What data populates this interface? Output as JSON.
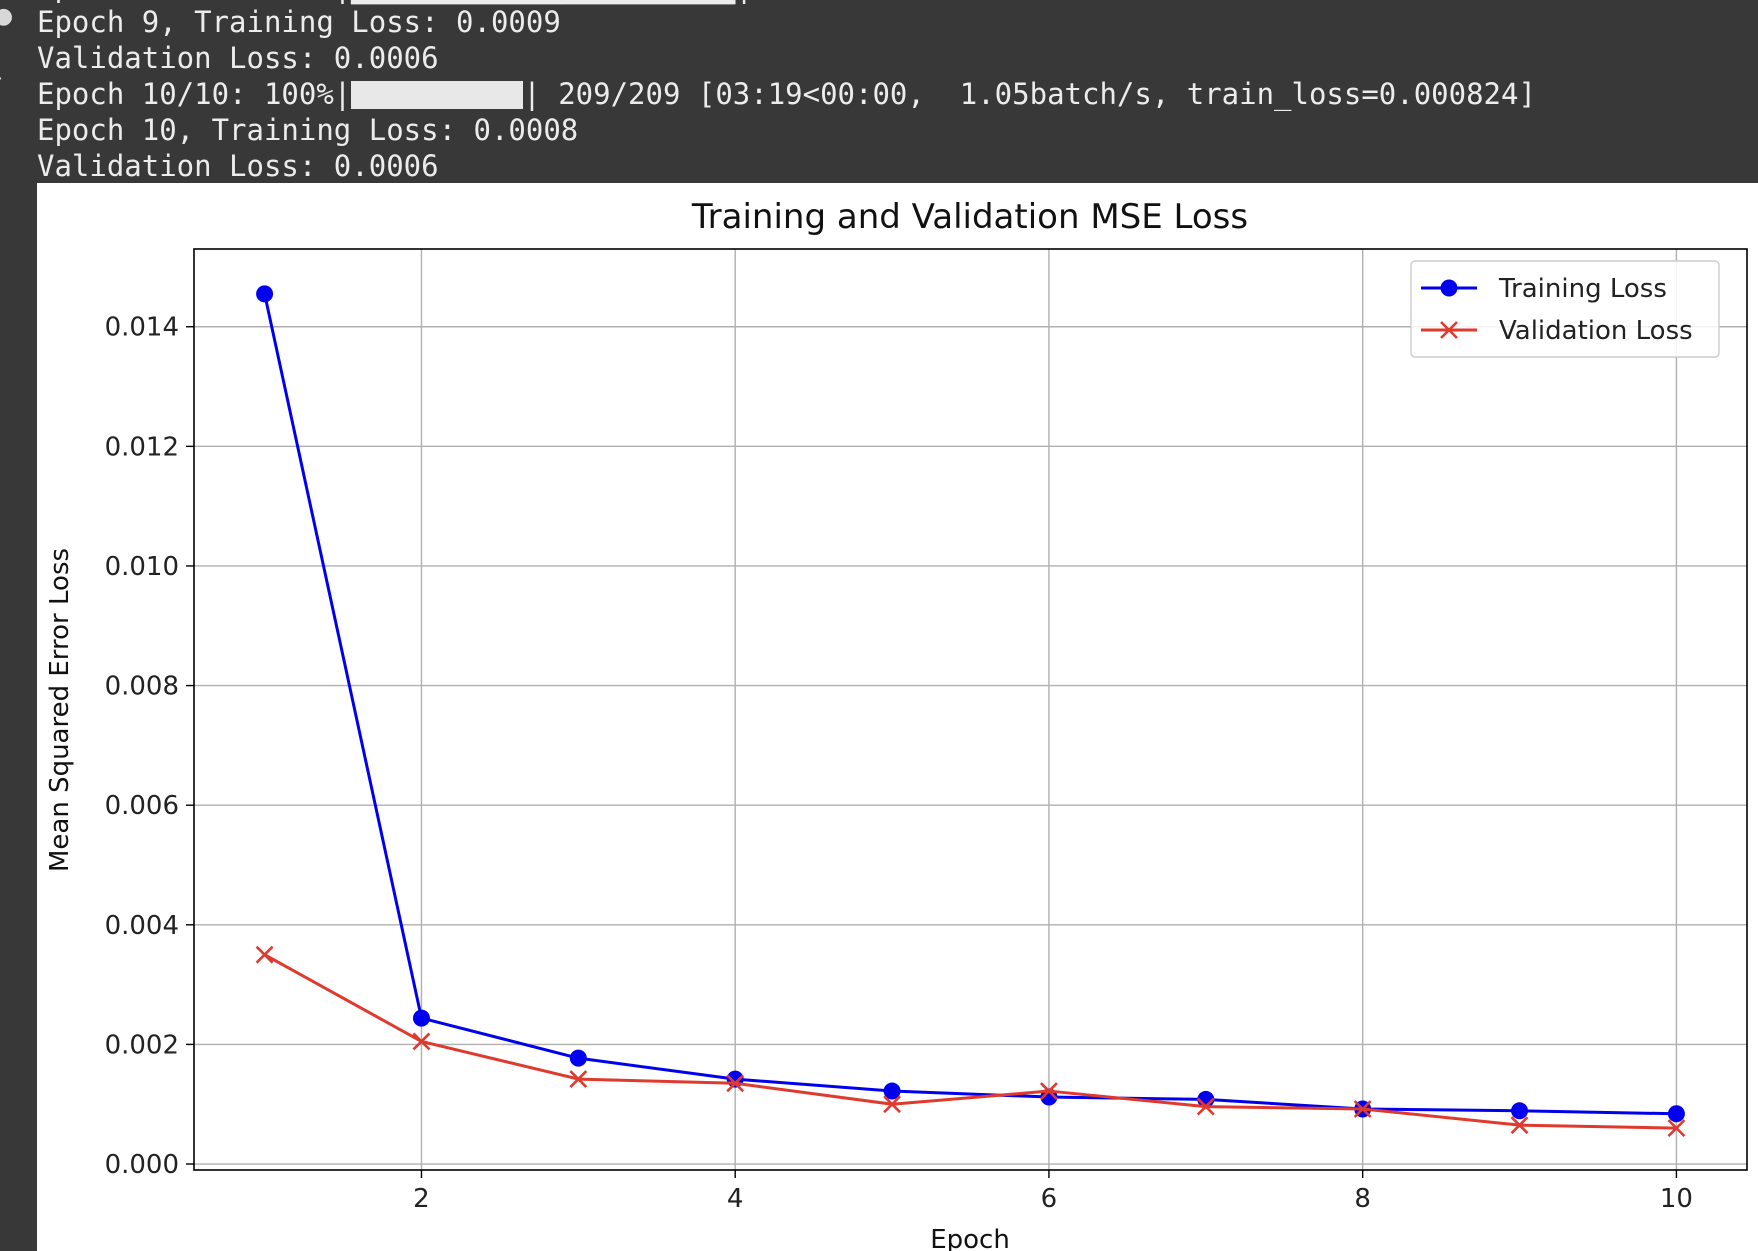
{
  "console": {
    "lines": [
      "Epoch 9, Training Loss: 0.0009",
      "Validation Loss: 0.0006",
      "Epoch 10, Training Loss: 0.0008",
      "Validation Loss: 0.0006"
    ],
    "progress": {
      "prefix": "Epoch 10/10: 100%|",
      "fraction": 1.0,
      "suffix": "| 209/209 [03:19<00:00,  1.05batch/s, train_loss=0.000824]"
    }
  },
  "chart_data": {
    "type": "line",
    "title": "Training and Validation MSE Loss",
    "xlabel": "Epoch",
    "ylabel": "Mean Squared Error Loss",
    "x": [
      1,
      2,
      3,
      4,
      5,
      6,
      7,
      8,
      9,
      10
    ],
    "xlim": [
      0.55,
      10.45
    ],
    "ylim": [
      -0.0001,
      0.0153
    ],
    "xticks": [
      2,
      4,
      6,
      8,
      10
    ],
    "xtick_labels": [
      "2",
      "4",
      "6",
      "8",
      "10"
    ],
    "yticks": [
      0.0,
      0.002,
      0.004,
      0.006,
      0.008,
      0.01,
      0.012,
      0.014
    ],
    "ytick_labels": [
      "0.000",
      "0.002",
      "0.004",
      "0.006",
      "0.008",
      "0.010",
      "0.012",
      "0.014"
    ],
    "grid": true,
    "legend_position": "top-right",
    "series": [
      {
        "name": "Training Loss",
        "color": "#0000ee",
        "marker": "circle",
        "values": [
          0.01455,
          0.00244,
          0.00177,
          0.00142,
          0.00122,
          0.00112,
          0.00108,
          0.00092,
          0.00089,
          0.00084
        ]
      },
      {
        "name": "Validation Loss",
        "color": "#e03a2e",
        "marker": "x",
        "values": [
          0.0035,
          0.00205,
          0.00142,
          0.00135,
          0.001,
          0.00122,
          0.00096,
          0.00092,
          0.00065,
          0.0006
        ]
      }
    ]
  }
}
